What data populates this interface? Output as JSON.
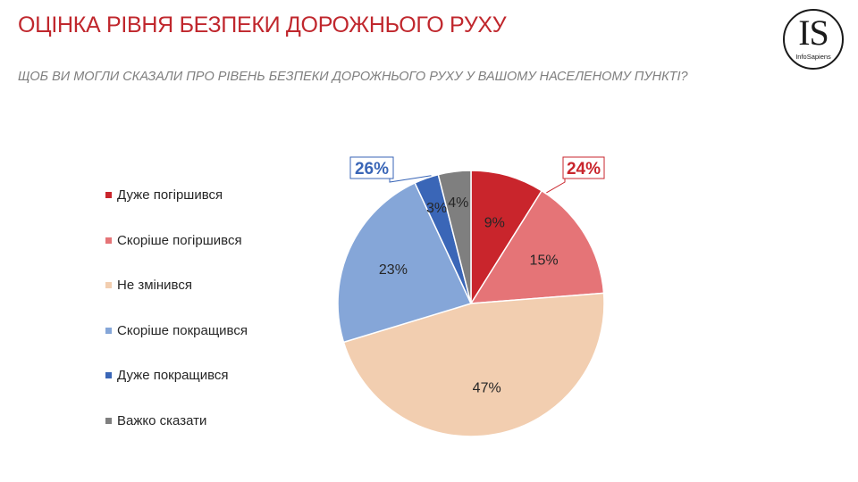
{
  "header": {
    "title": "ОЦІНКА РІВНЯ БЕЗПЕКИ ДОРОЖНЬОГО РУХУ",
    "subtitle": "ЩОБ ВИ МОГЛИ СКАЗАЛИ ПРО РІВЕНЬ БЕЗПЕКИ ДОРОЖНЬОГО РУХУ У ВАШОМУ НАСЕЛЕНОМУ ПУНКТІ?"
  },
  "logo": {
    "mark": "IS",
    "name": "InfoSapiens"
  },
  "chart_data": {
    "type": "pie",
    "title": "ОЦІНКА РІВНЯ БЕЗПЕКИ ДОРОЖНЬОГО РУХУ",
    "subtitle": "ЩОБ ВИ МОГЛИ СКАЗАЛИ ПРО РІВЕНЬ БЕЗПЕКИ ДОРОЖНЬОГО РУХУ У ВАШОМУ НАСЕЛЕНОМУ ПУНКТІ?",
    "legend_position": "left",
    "slices": [
      {
        "label": "Дуже погіршився",
        "value": 9,
        "display": "9%",
        "color": "#c9252c"
      },
      {
        "label": "Скоріше погіршився",
        "value": 15,
        "display": "15%",
        "color": "#e57477"
      },
      {
        "label": "Не змінився",
        "value": 47,
        "display": "47%",
        "color": "#f2ceb0"
      },
      {
        "label": "Скоріше покращився",
        "value": 23,
        "display": "23%",
        "color": "#85a6d8"
      },
      {
        "label": "Дуже покращився",
        "value": 3,
        "display": "3%",
        "color": "#3a66b7"
      },
      {
        "label": "Важко сказати",
        "value": 4,
        "display": "4%",
        "color": "#7f7f7f"
      }
    ],
    "annotations": [
      {
        "text": "24%",
        "color": "#c9252c",
        "covers": [
          "Дуже погіршився",
          "Скоріше погіршився"
        ]
      },
      {
        "text": "26%",
        "color": "#3a66b7",
        "covers": [
          "Скоріше покращився",
          "Дуже покращився"
        ]
      }
    ]
  }
}
